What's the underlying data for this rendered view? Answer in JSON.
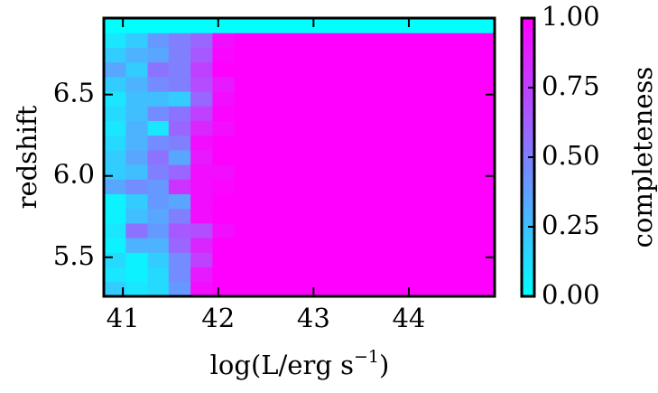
{
  "chart_data": {
    "type": "heatmap",
    "xlabel": "log(L/erg s",
    "xlabel_sup": "−1",
    "xlabel_end": ")",
    "ylabel": "redshift",
    "colorbar_label": "completeness",
    "colormap": "cool",
    "xlim": [
      40.8,
      44.9
    ],
    "ylim": [
      5.26,
      6.97
    ],
    "xticks": [
      41,
      42,
      43,
      44
    ],
    "yticks": [
      5.5,
      {
        "value": 6,
        "label": "6.0"
      },
      6.5
    ],
    "clim": [
      0,
      1
    ],
    "cticks": [
      {
        "value": 0,
        "label": "0.00"
      },
      0.25,
      {
        "value": 0.5,
        "label": "0.50"
      },
      0.75,
      {
        "value": 1,
        "label": "1.00"
      }
    ],
    "x_bins": [
      40.8,
      41.03,
      41.26,
      41.48,
      41.71,
      41.94,
      42.17,
      42.4,
      42.62,
      42.85,
      43.08,
      43.31,
      43.54,
      43.76,
      43.99,
      44.22,
      44.45,
      44.68,
      44.9
    ],
    "y_bins": [
      5.26,
      5.35,
      5.44,
      5.53,
      5.62,
      5.71,
      5.8,
      5.89,
      5.98,
      6.07,
      6.16,
      6.25,
      6.34,
      6.43,
      6.52,
      6.61,
      6.7,
      6.79,
      6.88,
      6.97
    ],
    "z": [
      [
        0.2,
        0.1,
        0.15,
        0.4,
        0.95,
        1,
        1,
        1,
        1,
        1,
        1,
        1,
        1,
        1,
        1,
        1,
        1,
        1
      ],
      [
        0.1,
        0.05,
        0.15,
        0.45,
        0.9,
        1,
        1,
        1,
        1,
        1,
        1,
        1,
        1,
        1,
        1,
        1,
        1,
        1
      ],
      [
        0.15,
        0.05,
        0.2,
        0.45,
        0.75,
        1,
        1,
        1,
        1,
        1,
        1,
        1,
        1,
        1,
        1,
        1,
        1,
        1
      ],
      [
        0.05,
        0.3,
        0.3,
        0.6,
        0.85,
        1,
        1,
        1,
        1,
        1,
        1,
        1,
        1,
        1,
        1,
        1,
        1,
        1
      ],
      [
        0.1,
        0.55,
        0.4,
        0.65,
        0.7,
        0.95,
        1,
        1,
        1,
        1,
        1,
        1,
        1,
        1,
        1,
        1,
        1,
        1
      ],
      [
        0.05,
        0.25,
        0.35,
        0.5,
        0.95,
        1,
        1,
        1,
        1,
        1,
        1,
        1,
        1,
        1,
        1,
        1,
        1,
        1
      ],
      [
        0.05,
        0.2,
        0.4,
        0.35,
        0.95,
        1,
        1,
        1,
        1,
        1,
        1,
        1,
        1,
        1,
        1,
        1,
        1,
        1
      ],
      [
        0.35,
        0.45,
        0.4,
        0.8,
        0.95,
        0.98,
        1,
        1,
        1,
        1,
        1,
        1,
        1,
        1,
        1,
        1,
        1,
        1
      ],
      [
        0.2,
        0.25,
        0.5,
        0.6,
        0.95,
        0.95,
        1,
        1,
        1,
        1,
        1,
        1,
        1,
        1,
        1,
        1,
        1,
        1
      ],
      [
        0.2,
        0.35,
        0.55,
        0.35,
        0.9,
        1,
        1,
        1,
        1,
        1,
        1,
        1,
        1,
        1,
        1,
        1,
        1,
        1
      ],
      [
        0.15,
        0.3,
        0.45,
        0.5,
        0.95,
        1,
        1,
        1,
        1,
        1,
        1,
        1,
        1,
        1,
        1,
        1,
        1,
        1
      ],
      [
        0.1,
        0.3,
        0.1,
        0.6,
        0.85,
        0.95,
        1,
        1,
        1,
        1,
        1,
        1,
        1,
        1,
        1,
        1,
        1,
        1
      ],
      [
        0.15,
        0.25,
        0.45,
        0.55,
        0.75,
        0.98,
        1,
        1,
        1,
        1,
        1,
        1,
        1,
        1,
        1,
        1,
        1,
        1
      ],
      [
        0.1,
        0.25,
        0.25,
        0.2,
        0.6,
        0.95,
        1,
        1,
        1,
        1,
        1,
        1,
        1,
        1,
        1,
        1,
        1,
        1
      ],
      [
        0.2,
        0.3,
        0.45,
        0.5,
        0.7,
        0.9,
        1,
        1,
        1,
        1,
        1,
        1,
        1,
        1,
        1,
        1,
        1,
        1
      ],
      [
        0.35,
        0.2,
        0.55,
        0.5,
        0.75,
        1,
        1,
        1,
        1,
        1,
        1,
        1,
        1,
        1,
        1,
        1,
        1,
        1
      ],
      [
        0.2,
        0.3,
        0.35,
        0.5,
        0.65,
        0.98,
        1,
        1,
        1,
        1,
        1,
        1,
        1,
        1,
        1,
        1,
        1,
        1
      ],
      [
        0.1,
        0.2,
        0.4,
        0.5,
        0.6,
        0.95,
        1,
        1,
        1,
        1,
        1,
        1,
        1,
        1,
        1,
        1,
        1,
        1
      ],
      [
        0,
        0,
        0,
        0,
        0,
        0,
        0,
        0,
        0,
        0,
        0,
        0,
        0,
        0,
        0,
        0,
        0,
        0
      ]
    ]
  }
}
